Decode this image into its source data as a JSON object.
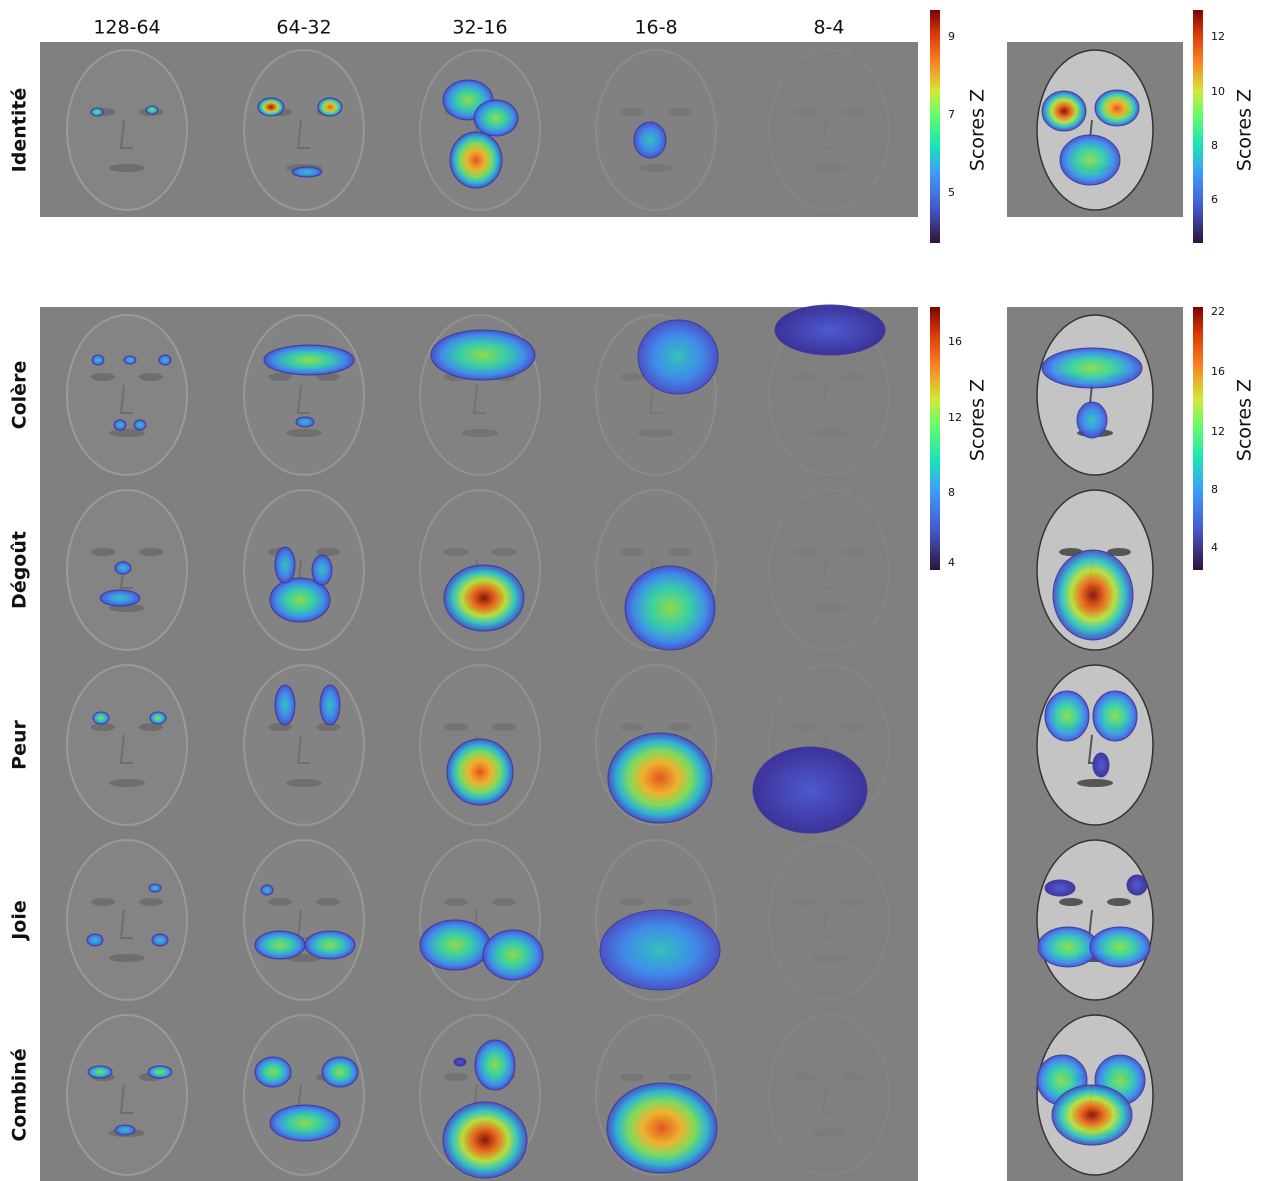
{
  "columns": [
    "128-64",
    "64-32",
    "32-16",
    "16-8",
    "8-4"
  ],
  "rows": [
    "Identité",
    "Colère",
    "Dégoût",
    "Peur",
    "Joie",
    "Combiné"
  ],
  "colorbars": [
    {
      "label": "Scores Z",
      "ticks": [
        9,
        7,
        5
      ]
    },
    {
      "label": "Scores Z",
      "ticks": [
        12,
        10,
        8,
        6
      ]
    },
    {
      "label": "Scores Z",
      "ticks": [
        16,
        12,
        8,
        4
      ]
    },
    {
      "label": "Scores Z",
      "ticks": [
        22,
        16,
        12,
        8,
        4
      ]
    }
  ]
}
